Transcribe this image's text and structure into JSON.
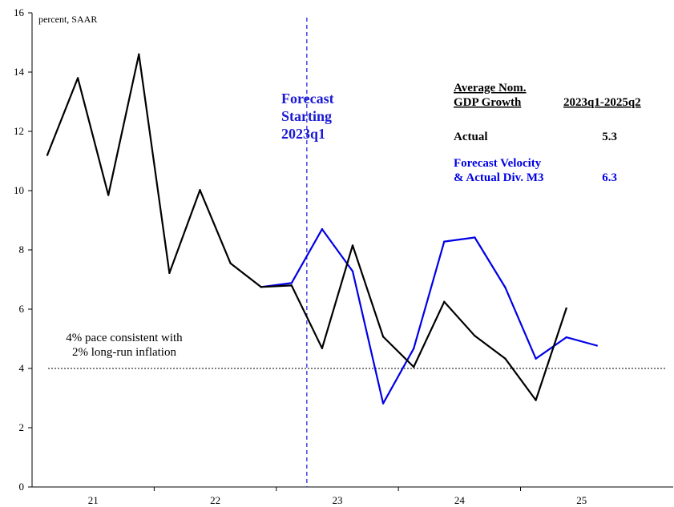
{
  "chart_data": {
    "type": "line",
    "unit_label": "percent, SAAR",
    "ylim": [
      0,
      16
    ],
    "yticks": [
      0,
      2,
      4,
      6,
      8,
      10,
      12,
      14,
      16
    ],
    "x_range": [
      2020.5,
      2025.75
    ],
    "x_tick_labels": [
      {
        "x": 2021.0,
        "label": "21"
      },
      {
        "x": 2022.0,
        "label": "22"
      },
      {
        "x": 2023.0,
        "label": "23"
      },
      {
        "x": 2024.0,
        "label": "24"
      },
      {
        "x": 2025.0,
        "label": "25"
      }
    ],
    "x_minor_ticks": [
      2021.5,
      2022.5,
      2023.5,
      2024.5
    ],
    "series": [
      {
        "color": "#000000",
        "x": [
          2020.625,
          2020.875,
          2021.125,
          2021.375,
          2021.625,
          2021.875,
          2022.125,
          2022.375,
          2022.625,
          2022.875,
          2023.125,
          2023.375,
          2023.625,
          2023.875,
          2024.125,
          2024.375,
          2024.625,
          2024.875
        ],
        "values": [
          11.2,
          13.8,
          9.85,
          14.6,
          7.22,
          10.02,
          7.55,
          6.75,
          6.8,
          4.68,
          8.15,
          5.07,
          4.05,
          6.25,
          5.1,
          4.33,
          2.93,
          6.03
        ]
      },
      {
        "color": "#0000e6",
        "x": [
          2022.375,
          2022.625,
          2022.875,
          2023.125,
          2023.375,
          2023.625,
          2023.875,
          2024.125,
          2024.375,
          2024.625,
          2024.875,
          2025.125
        ],
        "values": [
          6.75,
          6.88,
          8.7,
          7.28,
          2.82,
          4.67,
          8.28,
          8.42,
          6.73,
          4.33,
          5.05,
          4.77
        ]
      }
    ],
    "forecast_line": {
      "x": 2022.75,
      "color": "#1a1ad6"
    },
    "forecast_label": [
      "Forecast",
      "Starting",
      "2023q1"
    ],
    "reference_line": {
      "y": 4
    },
    "reference_label": [
      "4% pace consistent with",
      "2% long-run inflation"
    ],
    "table": {
      "col1_header": [
        "Average Nom.",
        "GDP Growth"
      ],
      "col2_header": "2023q1-2025q2",
      "rows": [
        {
          "label": [
            "Actual"
          ],
          "value": "5.3",
          "color": "#000000"
        },
        {
          "label": [
            "Forecast Velocity",
            "& Actual Div. M3"
          ],
          "value": "6.3",
          "color": "#0000e6"
        }
      ]
    }
  }
}
